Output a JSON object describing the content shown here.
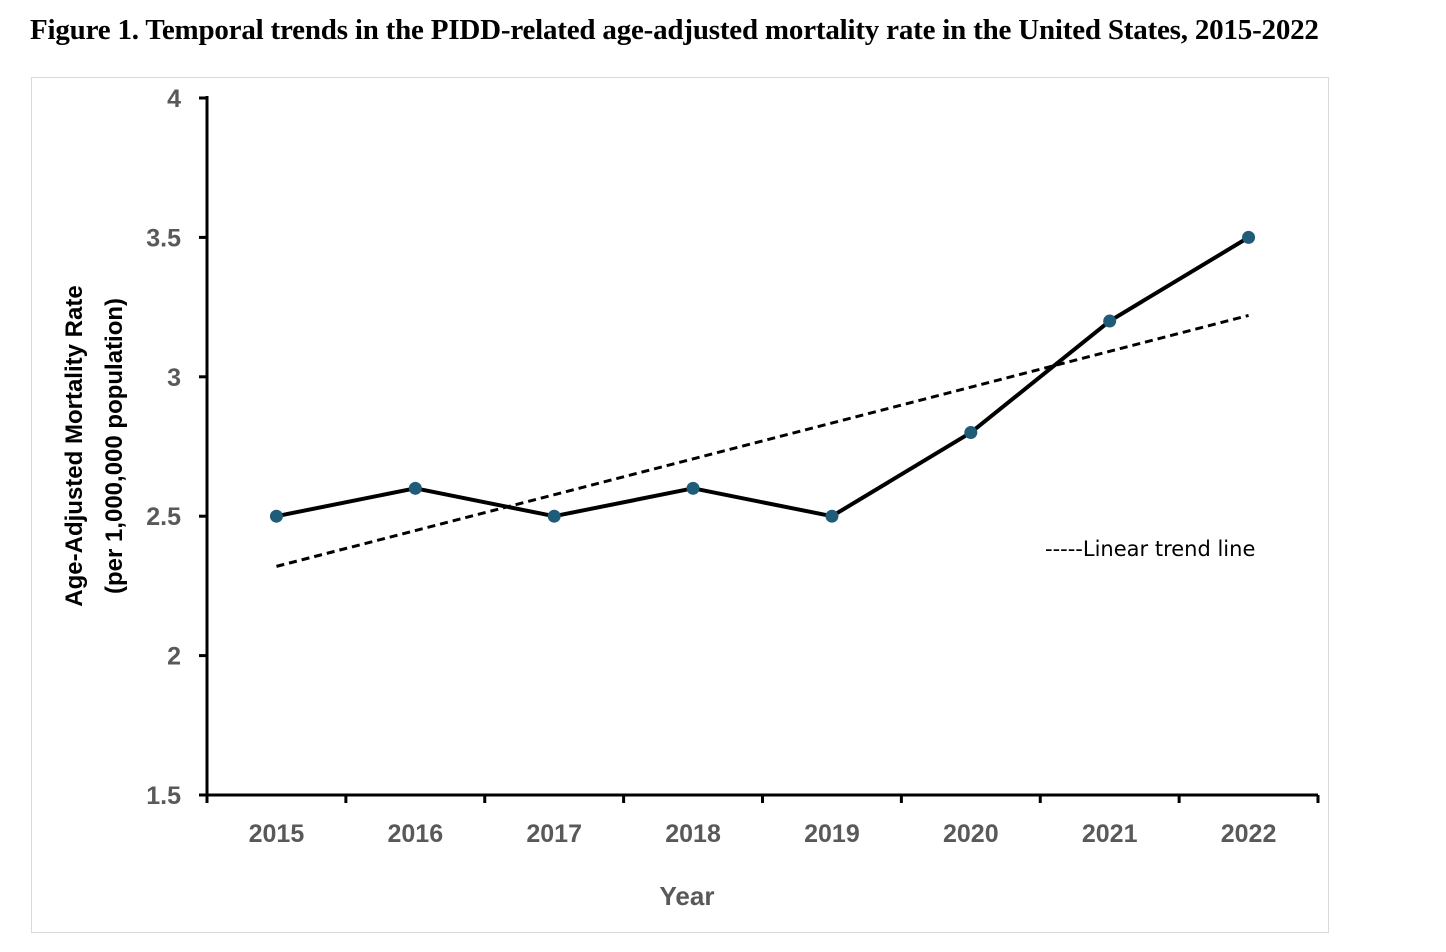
{
  "figure": {
    "title": "Figure 1. Temporal trends in the PIDD-related age-adjusted mortality rate in the United States, 2015-2022"
  },
  "chart_data": {
    "type": "line",
    "title": "",
    "xlabel": "Year",
    "ylabel_line1": "Age-Adjusted Mortality Rate",
    "ylabel_line2": "(per 1,000,000 population)",
    "categories": [
      "2015",
      "2016",
      "2017",
      "2018",
      "2019",
      "2020",
      "2021",
      "2022"
    ],
    "series": [
      {
        "values": [
          2.5,
          2.6,
          2.5,
          2.6,
          2.5,
          2.8,
          3.2,
          3.5
        ],
        "line_color": "#000000",
        "marker_color": "#1f5c7a"
      }
    ],
    "trend_line": {
      "label": "-----Linear trend line",
      "start": 2.32,
      "end": 3.22,
      "style": "dashed"
    },
    "yticks": [
      "4",
      "3.5",
      "3",
      "2.5",
      "2",
      "1.5"
    ],
    "ylim": [
      1.5,
      4
    ],
    "grid": false,
    "legend_placement": "right"
  }
}
